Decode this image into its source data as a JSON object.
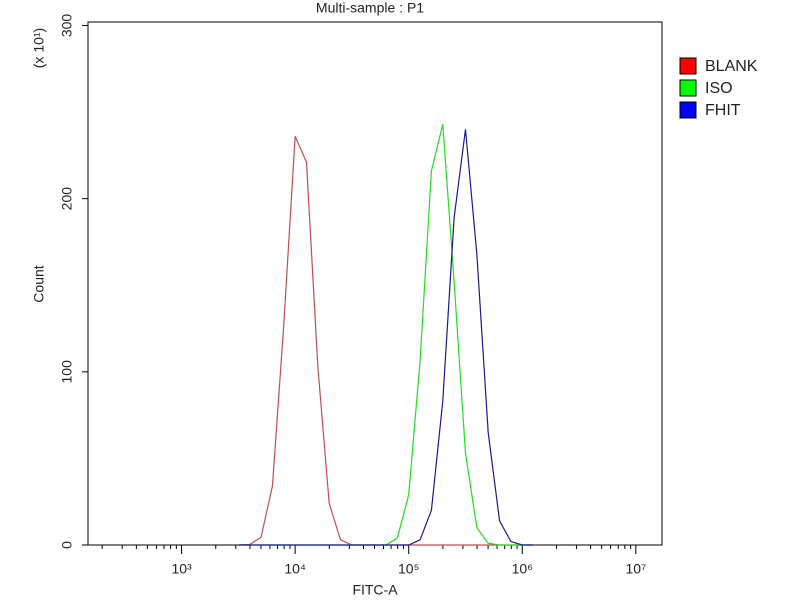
{
  "chart_data": {
    "type": "line",
    "title": "Multi-sample : P1",
    "x_label": "FITC-A",
    "y_label": "Count",
    "y_multiplier": "(x 10¹)",
    "x_log": true,
    "legend": "right",
    "x": [
      3162,
      3981,
      5012,
      6310,
      7943,
      10000,
      12589,
      15849,
      19953,
      25119,
      31623,
      39811,
      50119,
      63096,
      79433,
      100000,
      125893,
      158489,
      199526,
      251189,
      316228,
      398107,
      501187,
      630957,
      794328,
      1000000,
      1258925
    ],
    "series": [
      {
        "name": "BLANK",
        "color": "#ff0000",
        "line_color": "#c0504d",
        "values": [
          0,
          0.3,
          4.5,
          34,
          127,
          236,
          221,
          103,
          24,
          3,
          0,
          0,
          0,
          0,
          0,
          0,
          0,
          0,
          0,
          0,
          0,
          0,
          0,
          0,
          0,
          0,
          0
        ]
      },
      {
        "name": "ISO",
        "color": "#00ff00",
        "line_color": "#22dd22",
        "values": [
          0,
          0,
          0,
          0,
          0,
          0,
          0,
          0,
          0,
          0,
          0,
          0,
          0,
          0,
          4,
          29,
          106,
          216,
          243,
          152,
          53,
          10,
          1,
          0,
          0,
          0,
          0
        ]
      },
      {
        "name": "FHIT",
        "color": "#0000ff",
        "line_color": "#1a1a8c",
        "values": [
          0,
          0,
          0,
          0,
          0,
          0,
          0,
          0,
          0,
          0,
          0,
          0,
          0,
          0,
          0,
          0,
          3,
          20,
          83,
          189,
          240,
          168,
          65,
          14,
          2,
          0,
          0
        ]
      }
    ],
    "xlim": [
      150,
      17000000
    ],
    "xticks": [
      {
        "value": 1000,
        "label": "10³"
      },
      {
        "value": 10000,
        "label": "10⁴"
      },
      {
        "value": 100000,
        "label": "10⁵"
      },
      {
        "value": 1000000,
        "label": "10⁶"
      },
      {
        "value": 10000000,
        "label": "10⁷"
      }
    ],
    "ylim": [
      0,
      302
    ],
    "yticks": [
      0,
      100,
      200,
      300
    ]
  }
}
